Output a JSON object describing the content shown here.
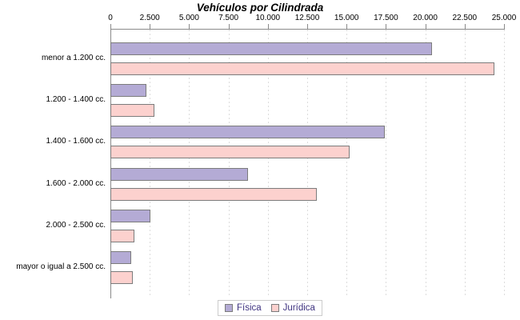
{
  "title": "Vehículos por Cilindrada",
  "colors": {
    "fisica_fill": "#b4abd5",
    "juridica_fill": "#fcd1ce",
    "bar_border": "#7c7c7c",
    "axis_line": "#8a8a8a",
    "gridline": "#dcdcdc",
    "legend_text": "#3f3380",
    "legend_border": "#cccccc"
  },
  "chart_data": {
    "type": "bar",
    "orientation": "horizontal",
    "title": "Vehículos por Cilindrada",
    "categories": [
      "menor a 1.200 cc.",
      "1.200 - 1.400 cc.",
      "1.400 - 1.600 cc.",
      "1.600 - 2.000 cc.",
      "2.000 - 2.500 cc.",
      "mayor o igual a 2.500 cc."
    ],
    "series": [
      {
        "name": "Física",
        "values": [
          20450,
          2290,
          17450,
          8730,
          2540,
          1310
        ]
      },
      {
        "name": "Jurídica",
        "values": [
          24400,
          2800,
          15200,
          13130,
          1530,
          1410
        ]
      }
    ],
    "xlim": [
      0,
      25000
    ],
    "x_tick_interval": 2500,
    "x_tick_labels": [
      "0",
      "2.500",
      "5.000",
      "7.500",
      "10.000",
      "12.500",
      "15.000",
      "17.500",
      "20.000",
      "22.500",
      "25.000"
    ],
    "grid": true,
    "legend_position": "bottom"
  }
}
